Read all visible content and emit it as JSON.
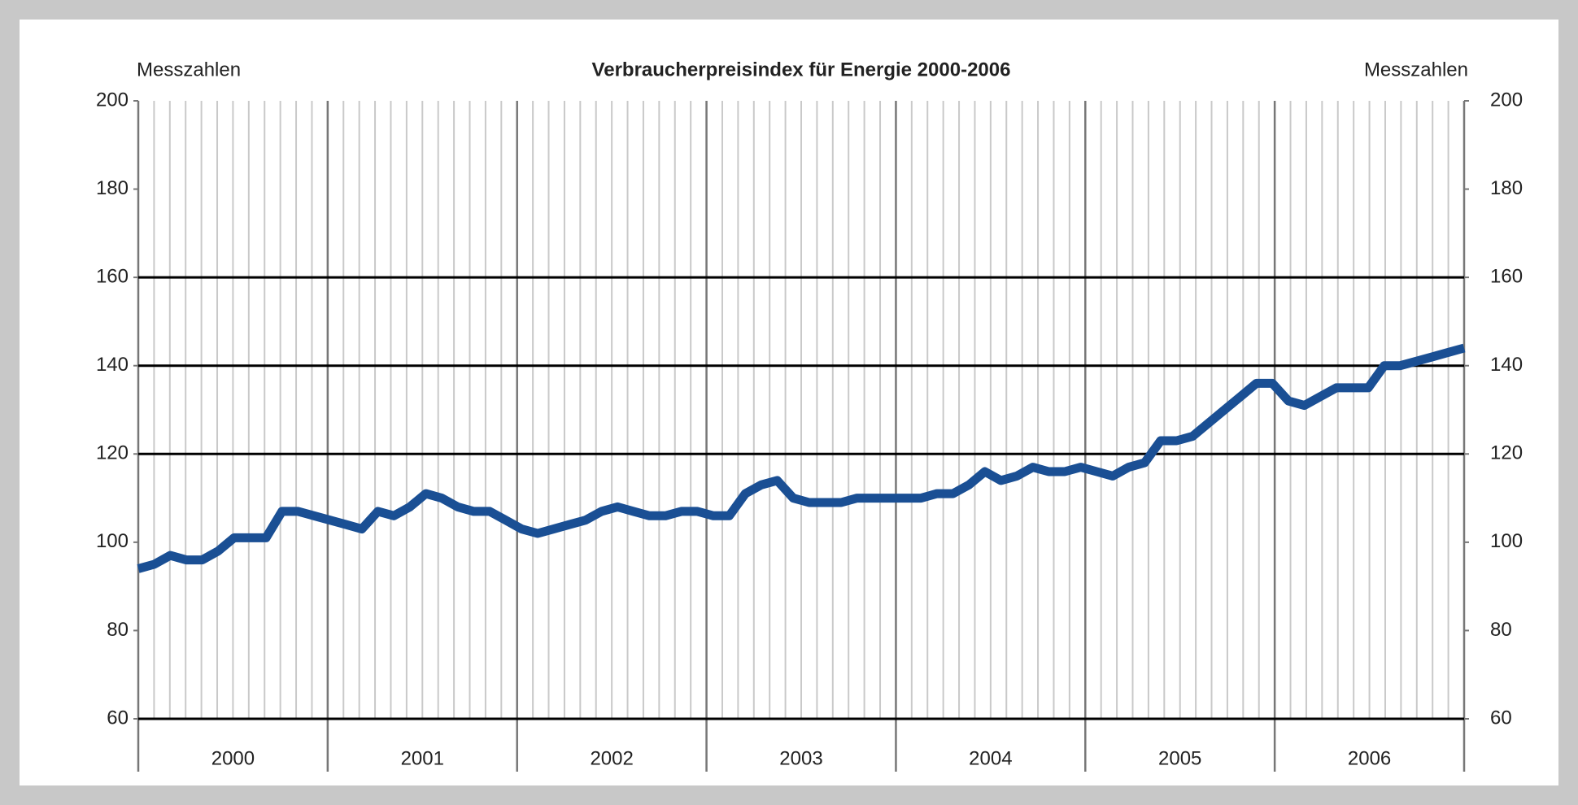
{
  "chart_data": {
    "type": "line",
    "title": "Verbraucherpreisindex für Energie 2000-2006",
    "y_label": "Messzahlen",
    "y2_label": "Messzahlen",
    "categories": [
      "2000",
      "2001",
      "2002",
      "2003",
      "2004",
      "2005",
      "2006"
    ],
    "series": [
      {
        "name": "Verbraucherpreisindex für Energie",
        "color": "#1a4f94",
        "values": [
          [
            94,
            95,
            97,
            96,
            96,
            98,
            101,
            101,
            101,
            107,
            107,
            106
          ],
          [
            105,
            104,
            103,
            107,
            106,
            108,
            111,
            110,
            108,
            107,
            107,
            105
          ],
          [
            103,
            102,
            103,
            104,
            105,
            107,
            108,
            107,
            106,
            106,
            107,
            107
          ],
          [
            106,
            106,
            111,
            113,
            114,
            110,
            109,
            109,
            109,
            110,
            110,
            110
          ],
          [
            110,
            110,
            111,
            111,
            113,
            116,
            114,
            115,
            117,
            116,
            116,
            117
          ],
          [
            116,
            115,
            117,
            118,
            123,
            123,
            124,
            127,
            130,
            133,
            136,
            136
          ],
          [
            132,
            131,
            133,
            135,
            135,
            135,
            140,
            140,
            141,
            142,
            143,
            144
          ]
        ]
      }
    ],
    "ylim": [
      60,
      200
    ],
    "yticks": [
      60,
      80,
      100,
      120,
      140,
      160,
      180,
      200
    ],
    "y2lim": [
      60,
      200
    ],
    "y2ticks": [
      60,
      80,
      100,
      120,
      140,
      160,
      180,
      200
    ],
    "gridlines": [
      60,
      120,
      140,
      160
    ]
  }
}
